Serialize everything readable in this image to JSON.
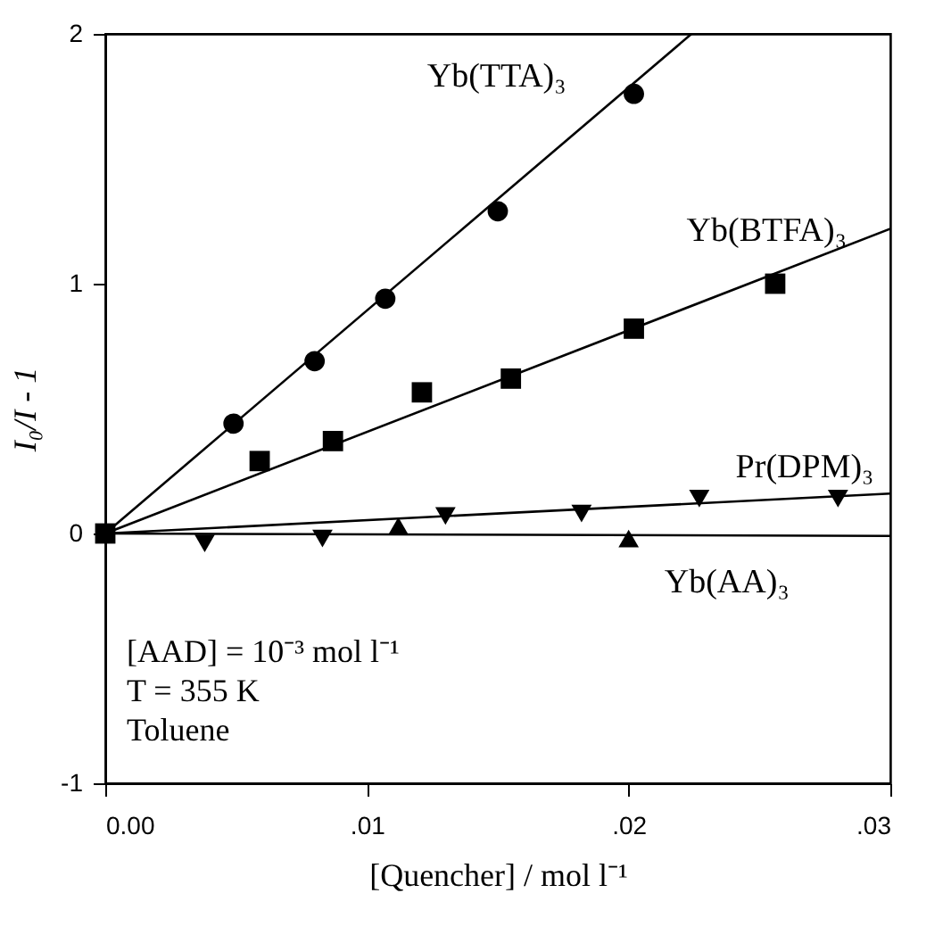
{
  "chart_data": {
    "type": "scatter",
    "xlabel": "[Quencher] / mol l⁻¹",
    "ylabel": "I₀/I - 1",
    "xlim": [
      0,
      0.03
    ],
    "ylim": [
      -1,
      2
    ],
    "xticks": [
      {
        "value": 0,
        "label": "0.00"
      },
      {
        "value": 0.01,
        "label": ".01"
      },
      {
        "value": 0.02,
        "label": ".02"
      },
      {
        "value": 0.03,
        "label": ".03"
      }
    ],
    "yticks": [
      -1,
      0,
      1,
      2
    ],
    "grid": false,
    "series": [
      {
        "name": "Yb(TTA)₃",
        "color": "#000000",
        "marker": "circle",
        "x": [
          0.0049,
          0.008,
          0.0107,
          0.015,
          0.0202
        ],
        "values": [
          0.44,
          0.69,
          0.94,
          1.29,
          1.76
        ]
      },
      {
        "type": "line",
        "color": "#000000",
        "marker": "none",
        "x": [
          0,
          0.0224
        ],
        "values": [
          0,
          2
        ]
      },
      {
        "name": "Yb(BTFA)₃",
        "color": "#000000",
        "marker": "square",
        "x": [
          0,
          0.0059,
          0.0087,
          0.0121,
          0.0155,
          0.0202,
          0.0256
        ],
        "values": [
          0,
          0.29,
          0.37,
          0.565,
          0.62,
          0.82,
          1.0
        ]
      },
      {
        "type": "line",
        "color": "#000000",
        "marker": "none",
        "x": [
          0,
          0.03
        ],
        "values": [
          0,
          1.22
        ]
      },
      {
        "name": "Pr(DPM)₃",
        "color": "#000000",
        "marker": "triangle-down",
        "x": [
          0.0038,
          0.0083,
          0.013,
          0.0182,
          0.0227,
          0.028
        ],
        "values": [
          -0.04,
          -0.02,
          0.07,
          0.08,
          0.14,
          0.14
        ]
      },
      {
        "type": "line",
        "color": "#000000",
        "marker": "none",
        "x": [
          0,
          0.03
        ],
        "values": [
          0,
          0.16
        ]
      },
      {
        "name": "Yb(AA)₃",
        "color": "#000000",
        "marker": "triangle",
        "x": [
          0.0112,
          0.02
        ],
        "values": [
          0.03,
          -0.02
        ]
      },
      {
        "type": "line",
        "color": "#000000",
        "marker": "none",
        "x": [
          0,
          0.03
        ],
        "values": [
          0,
          -0.01
        ]
      }
    ],
    "annotations": [
      "[AAD] = 10⁻³ mol l⁻¹",
      "T = 355 K",
      "Toluene"
    ]
  }
}
